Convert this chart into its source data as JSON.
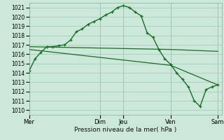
{
  "xlabel": "Pression niveau de la mer( hPa )",
  "bg_color": "#cce8d8",
  "grid_color": "#aaccbc",
  "line_color": "#1a6b2a",
  "ylim": [
    1009.5,
    1021.5
  ],
  "yticks": [
    1010,
    1011,
    1012,
    1013,
    1014,
    1015,
    1016,
    1017,
    1018,
    1019,
    1020,
    1021
  ],
  "vlines_x": [
    0,
    72,
    96,
    144,
    192
  ],
  "xtick_pos": [
    0,
    72,
    96,
    144,
    192
  ],
  "xtick_lab": [
    "Mer",
    "Dim",
    "Jeu",
    "Ven",
    "Sam"
  ],
  "xlim": [
    0,
    196
  ],
  "series1_x": [
    0,
    6,
    12,
    18,
    24,
    30,
    36,
    42,
    48,
    54,
    60,
    66,
    72,
    78,
    84,
    90,
    96,
    102,
    108,
    114,
    120,
    126,
    132,
    138,
    144,
    150,
    156,
    162,
    168,
    174,
    180,
    186,
    192
  ],
  "series1_y": [
    1014.2,
    1015.5,
    1016.2,
    1016.8,
    1016.8,
    1016.9,
    1017.0,
    1017.5,
    1018.4,
    1018.7,
    1019.2,
    1019.5,
    1019.8,
    1020.2,
    1020.5,
    1021.0,
    1021.2,
    1021.0,
    1020.5,
    1020.1,
    1018.3,
    1017.8,
    1016.5,
    1015.5,
    1014.9,
    1014.0,
    1013.3,
    1012.5,
    1011.0,
    1010.4,
    1012.2,
    1012.5,
    1012.7
  ],
  "series2_x": [
    0,
    144,
    192
  ],
  "series2_y": [
    1016.8,
    1016.5,
    1016.3
  ],
  "series3_x": [
    0,
    144,
    192
  ],
  "series3_y": [
    1016.5,
    1014.8,
    1012.7
  ],
  "ytick_fontsize": 5.5,
  "xtick_fontsize": 6,
  "xlabel_fontsize": 6.5
}
